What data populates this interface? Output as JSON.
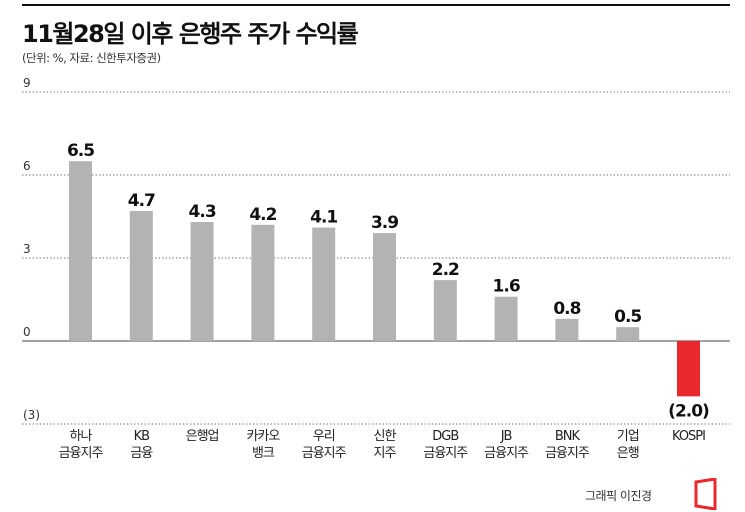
{
  "title": "11월28일 이후 은행주 주가 수익률",
  "subtitle": "(단위: %, 자료: 신한투자증권)",
  "credit": "그래픽 이진경",
  "colors": {
    "positive": "#b3b3b3",
    "negative": "#e8282c",
    "grid": "#777777"
  },
  "chart_data": {
    "type": "bar",
    "ylim": [
      -3,
      9
    ],
    "yticks": [
      9,
      6,
      3,
      0,
      -3
    ],
    "ytick_labels": [
      "9",
      "6",
      "3",
      "0",
      "(3)"
    ],
    "grid": true,
    "categories": [
      [
        "하나",
        "금융지주"
      ],
      [
        "KB",
        "금융"
      ],
      [
        "은행업"
      ],
      [
        "카카오",
        "뱅크"
      ],
      [
        "우리",
        "금융지주"
      ],
      [
        "신한",
        "지주"
      ],
      [
        "DGB",
        "금융지주"
      ],
      [
        "JB",
        "금융지주"
      ],
      [
        "BNK",
        "금융지주"
      ],
      [
        "기업",
        "은행"
      ],
      [
        "KOSPI"
      ]
    ],
    "values": [
      6.5,
      4.7,
      4.3,
      4.2,
      4.1,
      3.9,
      2.2,
      1.6,
      0.8,
      0.5,
      -2.0
    ],
    "data_labels": [
      "6.5",
      "4.7",
      "4.3",
      "4.2",
      "4.1",
      "3.9",
      "2.2",
      "1.6",
      "0.8",
      "0.5",
      "(2.0)"
    ]
  }
}
